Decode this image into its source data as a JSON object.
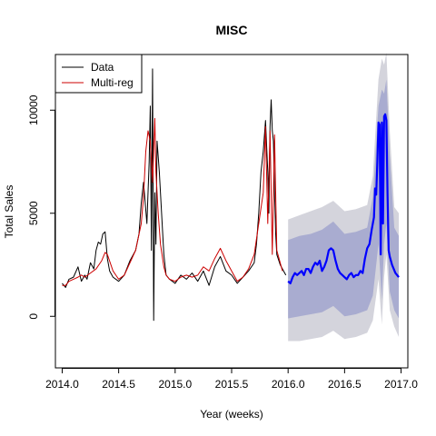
{
  "chart_data": {
    "type": "line",
    "title": "MISC",
    "xlabel": "Year (weeks)",
    "ylabel": "Total Sales",
    "xlim": [
      2013.94,
      2017.06
    ],
    "ylim": [
      -2500,
      12700
    ],
    "xticks": [
      2014.0,
      2014.5,
      2015.0,
      2015.5,
      2016.0,
      2016.5,
      2017.0
    ],
    "xtick_labels": [
      "2014.0",
      "2014.5",
      "2015.0",
      "2015.5",
      "2016.0",
      "2016.5",
      "2017.0"
    ],
    "yticks": [
      0,
      5000,
      10000
    ],
    "ytick_labels": [
      "0",
      "5000",
      "10000"
    ],
    "legend": {
      "position": "top-left",
      "entries": [
        {
          "label": "Data",
          "color": "#000000"
        },
        {
          "label": "Multi-reg",
          "color": "#cc0000"
        }
      ]
    },
    "series": [
      {
        "name": "Data",
        "color": "#000000",
        "x": [
          2014.0,
          2014.03,
          2014.06,
          2014.1,
          2014.14,
          2014.17,
          2014.2,
          2014.22,
          2014.25,
          2014.28,
          2014.3,
          2014.32,
          2014.34,
          2014.36,
          2014.38,
          2014.4,
          2014.42,
          2014.45,
          2014.5,
          2014.55,
          2014.6,
          2014.65,
          2014.68,
          2014.7,
          2014.72,
          2014.75,
          2014.77,
          2014.78,
          2014.79,
          2014.8,
          2014.81,
          2014.82,
          2014.83,
          2014.84,
          2014.86,
          2014.88,
          2014.9,
          2014.92,
          2014.95,
          2015.0,
          2015.05,
          2015.1,
          2015.15,
          2015.2,
          2015.25,
          2015.3,
          2015.35,
          2015.4,
          2015.45,
          2015.5,
          2015.55,
          2015.6,
          2015.65,
          2015.7,
          2015.72,
          2015.74,
          2015.76,
          2015.78,
          2015.8,
          2015.82,
          2015.83,
          2015.84,
          2015.85,
          2015.86,
          2015.87,
          2015.88,
          2015.89,
          2015.9,
          2015.93,
          2015.96,
          2015.98
        ],
        "y": [
          1600,
          1400,
          1800,
          1900,
          2400,
          1700,
          2000,
          1800,
          2600,
          2300,
          3200,
          3600,
          3500,
          4000,
          4100,
          2800,
          2200,
          1900,
          1700,
          2000,
          2700,
          3200,
          4000,
          5500,
          6500,
          4500,
          7500,
          10200,
          3200,
          12000,
          -200,
          6000,
          3500,
          8500,
          7000,
          5000,
          3000,
          2000,
          1800,
          1600,
          2000,
          1800,
          2100,
          1700,
          2200,
          1500,
          2400,
          2900,
          2200,
          2000,
          1600,
          1900,
          2200,
          2600,
          3500,
          5000,
          7000,
          8000,
          9500,
          7000,
          5000,
          9200,
          10500,
          9000,
          8500,
          6000,
          4000,
          3000,
          2500,
          2200,
          2000
        ]
      },
      {
        "name": "Multi-reg",
        "color": "#cc0000",
        "x": [
          2014.0,
          2014.03,
          2014.06,
          2014.1,
          2014.14,
          2014.17,
          2014.2,
          2014.25,
          2014.3,
          2014.35,
          2014.38,
          2014.4,
          2014.45,
          2014.5,
          2014.55,
          2014.6,
          2014.65,
          2014.7,
          2014.72,
          2014.74,
          2014.76,
          2014.78,
          2014.8,
          2014.82,
          2014.83,
          2014.85,
          2014.87,
          2014.9,
          2014.92,
          2014.95,
          2015.0,
          2015.05,
          2015.1,
          2015.15,
          2015.2,
          2015.25,
          2015.3,
          2015.35,
          2015.4,
          2015.45,
          2015.5,
          2015.55,
          2015.6,
          2015.65,
          2015.7,
          2015.74,
          2015.78,
          2015.8,
          2015.82,
          2015.84,
          2015.86,
          2015.88,
          2015.9,
          2015.95
        ],
        "y": [
          1500,
          1500,
          1700,
          1800,
          1900,
          2000,
          1900,
          2100,
          2300,
          2700,
          3100,
          3000,
          2200,
          1800,
          2000,
          2600,
          3200,
          4500,
          5800,
          8000,
          9000,
          8500,
          6500,
          9600,
          7000,
          5000,
          3500,
          2400,
          2000,
          1800,
          1700,
          1900,
          2000,
          1900,
          2000,
          2400,
          2200,
          2800,
          3300,
          2700,
          2200,
          1700,
          1900,
          2300,
          3000,
          4500,
          6000,
          9200,
          4500,
          9000,
          3000,
          8800,
          3200,
          2200
        ]
      },
      {
        "name": "",
        "color": "#0000ff",
        "x": [
          2016.0,
          2016.02,
          2016.04,
          2016.06,
          2016.08,
          2016.1,
          2016.12,
          2016.14,
          2016.16,
          2016.18,
          2016.2,
          2016.22,
          2016.24,
          2016.26,
          2016.28,
          2016.3,
          2016.32,
          2016.34,
          2016.36,
          2016.38,
          2016.4,
          2016.42,
          2016.44,
          2016.46,
          2016.48,
          2016.5,
          2016.52,
          2016.54,
          2016.56,
          2016.58,
          2016.6,
          2016.62,
          2016.64,
          2016.66,
          2016.68,
          2016.7,
          2016.72,
          2016.74,
          2016.76,
          2016.77,
          2016.78,
          2016.79,
          2016.8,
          2016.81,
          2016.82,
          2016.83,
          2016.84,
          2016.85,
          2016.86,
          2016.87,
          2016.88,
          2016.89,
          2016.9,
          2016.92,
          2016.95,
          2016.98
        ],
        "y": [
          1700,
          1600,
          1900,
          2100,
          2000,
          2100,
          2200,
          2000,
          2300,
          2300,
          2100,
          2400,
          2600,
          2500,
          2700,
          2200,
          2400,
          2700,
          3200,
          3300,
          3200,
          2700,
          2300,
          2100,
          2000,
          1900,
          1800,
          2000,
          2100,
          1900,
          2000,
          2000,
          2200,
          2100,
          2800,
          3300,
          3500,
          4200,
          4800,
          6200,
          5900,
          7500,
          9400,
          9300,
          3000,
          9400,
          4500,
          9700,
          9800,
          9500,
          6000,
          3200,
          2900,
          2500,
          2100,
          1900
        ]
      }
    ],
    "bands": [
      {
        "name": "",
        "color": "#d4d4dc",
        "x": [
          2016.0,
          2016.1,
          2016.2,
          2016.3,
          2016.4,
          2016.5,
          2016.6,
          2016.7,
          2016.75,
          2016.8,
          2016.83,
          2016.85,
          2016.87,
          2016.9,
          2016.94,
          2016.98
        ],
        "lower": [
          -1200,
          -1200,
          -1100,
          -1000,
          -700,
          -1100,
          -1000,
          -800,
          -200,
          1800,
          -400,
          1900,
          3000,
          300,
          -500,
          -1000
        ],
        "upper": [
          4700,
          4900,
          5100,
          5300,
          5600,
          5100,
          5200,
          5400,
          6800,
          11500,
          12500,
          12200,
          12800,
          9000,
          5300,
          5000
        ]
      },
      {
        "name": "",
        "color": "#a9acd0",
        "x": [
          2016.0,
          2016.1,
          2016.2,
          2016.3,
          2016.4,
          2016.5,
          2016.6,
          2016.7,
          2016.75,
          2016.8,
          2016.83,
          2016.85,
          2016.87,
          2016.9,
          2016.94,
          2016.98
        ],
        "lower": [
          -100,
          0,
          100,
          200,
          500,
          0,
          100,
          300,
          1000,
          3500,
          800,
          3500,
          4500,
          1200,
          300,
          -100
        ],
        "upper": [
          3700,
          3900,
          4000,
          4200,
          4600,
          4000,
          4100,
          4300,
          5800,
          10200,
          11000,
          10800,
          11500,
          7800,
          4300,
          3900
        ]
      }
    ]
  }
}
